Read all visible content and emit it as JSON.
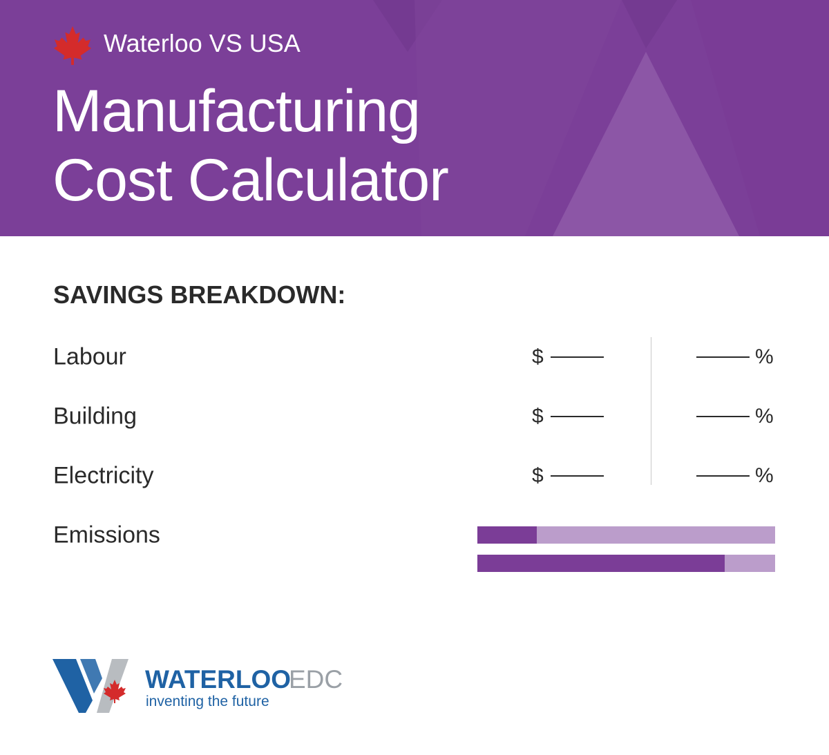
{
  "header": {
    "subtitle": "Waterloo VS USA",
    "title": [
      "Manufacturing",
      "Cost Calculator"
    ]
  },
  "breakdown": {
    "heading": "SAVINGS BREAKDOWN:",
    "rows": [
      {
        "label": "Labour",
        "currency": "$",
        "percent": "%"
      },
      {
        "label": "Building",
        "currency": "$",
        "percent": "%"
      },
      {
        "label": "Electricity",
        "currency": "$",
        "percent": "%"
      }
    ],
    "emissions": {
      "label": "Emissions",
      "bars": [
        20,
        83
      ]
    }
  },
  "logo": {
    "name": "WATERLOO",
    "suffix": "EDC",
    "tagline": "inventing the future"
  }
}
